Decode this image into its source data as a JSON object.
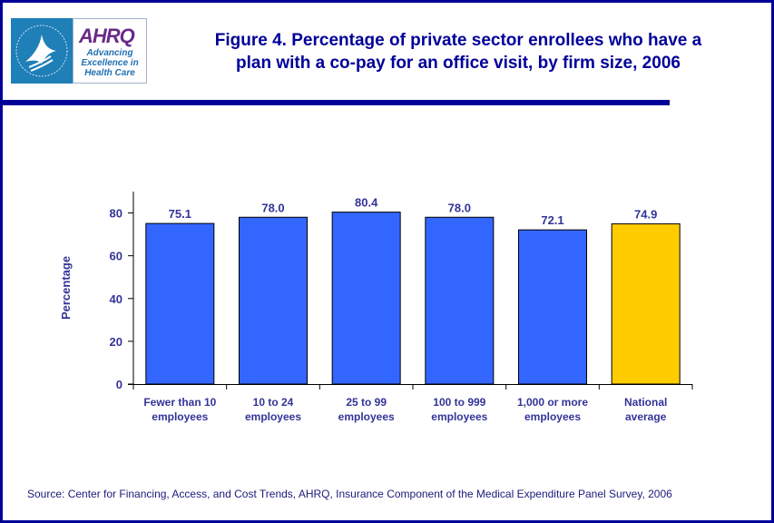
{
  "logo": {
    "brand": "AHRQ",
    "tagline": [
      "Advancing",
      "Excellence in",
      "Health Care"
    ]
  },
  "colors": {
    "frame": "#000099",
    "bar_default": "#3366ff",
    "bar_highlight": "#ffcc00",
    "text": "#333399"
  },
  "chart_data": {
    "type": "bar",
    "title": "Figure 4. Percentage of private sector enrollees who have a plan with a co-pay for an office visit, by firm size, 2006",
    "title_lines": [
      "Figure 4. Percentage of private sector enrollees who have a",
      "plan with a co-pay for an office visit, by firm size, 2006"
    ],
    "xlabel": "",
    "ylabel": "Percentage",
    "ylim": [
      0,
      90
    ],
    "yticks": [
      0,
      20,
      40,
      60,
      80
    ],
    "grid": false,
    "legend": "none",
    "categories": [
      [
        "Fewer than 10",
        "employees"
      ],
      [
        "10 to 24",
        "employees"
      ],
      [
        "25 to 99",
        "employees"
      ],
      [
        "100 to 999",
        "employees"
      ],
      [
        "1,000 or more",
        "employees"
      ],
      [
        "National",
        "average"
      ]
    ],
    "values": [
      75.1,
      78.0,
      80.4,
      78.0,
      72.1,
      74.9
    ],
    "value_labels": [
      "75.1",
      "78.0",
      "80.4",
      "78.0",
      "72.1",
      "74.9"
    ],
    "highlight_index": 5
  },
  "source": "Source: Center for Financing, Access, and Cost Trends, AHRQ, Insurance Component of the Medical Expenditure Panel Survey, 2006"
}
